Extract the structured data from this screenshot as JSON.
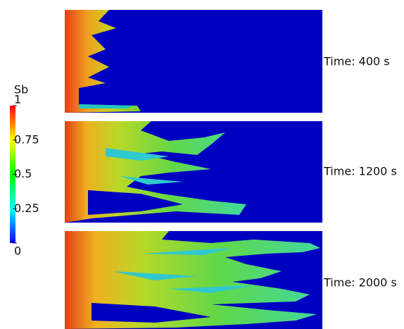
{
  "colorbar": {
    "title": "Sb",
    "range": [
      0,
      1
    ],
    "ticks": [
      0,
      0.25,
      0.5,
      0.75,
      1
    ]
  },
  "panels": [
    {
      "label": "Time: 400 s"
    },
    {
      "label": "Time: 1200 s"
    },
    {
      "label": "Time: 2000 s"
    }
  ]
}
